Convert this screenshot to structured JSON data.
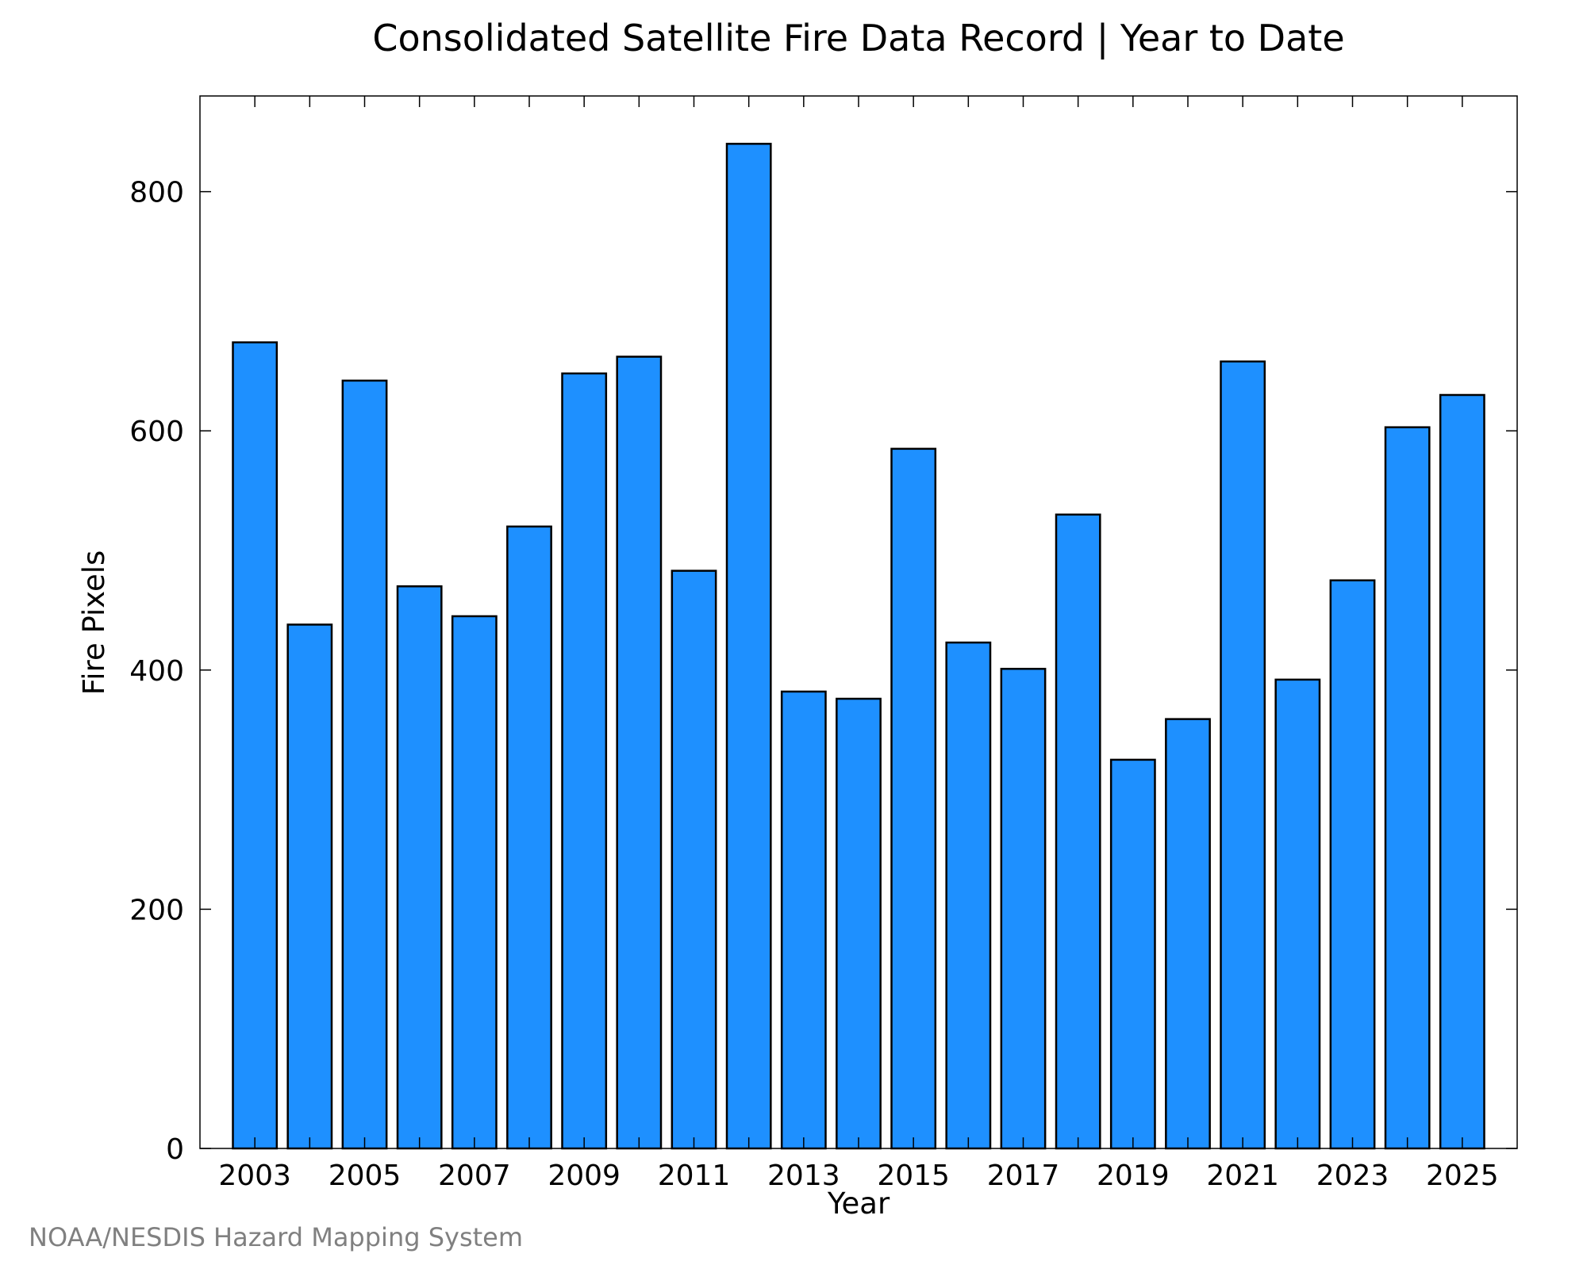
{
  "credit": "NOAA/NESDIS Hazard Mapping System",
  "colors": {
    "bar_fill": "#1E90FF",
    "bar_stroke": "#000000",
    "credit_text": "#808080"
  },
  "chart_data": {
    "type": "bar",
    "title": "Consolidated Satellite Fire Data Record | Year to Date",
    "xlabel": "Year",
    "ylabel": "Fire Pixels",
    "categories": [
      2003,
      2004,
      2005,
      2006,
      2007,
      2008,
      2009,
      2010,
      2011,
      2012,
      2013,
      2014,
      2015,
      2016,
      2017,
      2018,
      2019,
      2020,
      2021,
      2022,
      2023,
      2024,
      2025
    ],
    "values": [
      674,
      438,
      642,
      470,
      445,
      520,
      648,
      662,
      483,
      840,
      382,
      376,
      585,
      423,
      401,
      530,
      325,
      359,
      658,
      392,
      475,
      603,
      630
    ],
    "x_tick_labels": [
      "2003",
      "2005",
      "2007",
      "2009",
      "2011",
      "2013",
      "2015",
      "2017",
      "2019",
      "2021",
      "2023",
      "2025"
    ],
    "y_ticks": [
      0,
      200,
      400,
      600,
      800
    ],
    "xlim": [
      2002,
      2026
    ],
    "ylim": [
      0,
      880
    ],
    "grid": false,
    "legend": "none"
  }
}
